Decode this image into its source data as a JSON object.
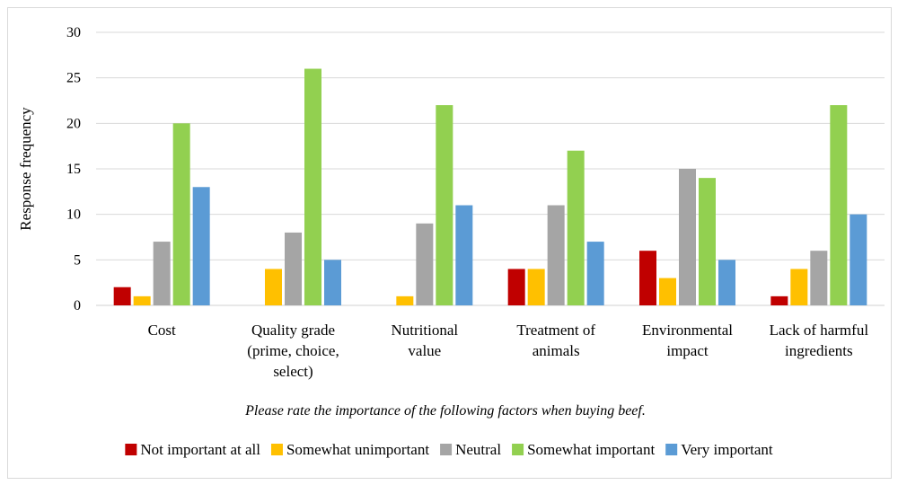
{
  "chart_data": {
    "type": "bar",
    "title": "",
    "ylabel": "Response frequency",
    "xlabel": "Please rate the importance of the following factors when buying beef.",
    "ylim": [
      0,
      30
    ],
    "yticks": [
      0,
      5,
      10,
      15,
      20,
      25,
      30
    ],
    "grid": true,
    "legend_position": "bottom",
    "categories": [
      [
        "Cost"
      ],
      [
        "Quality grade",
        "(prime, choice,",
        "select)"
      ],
      [
        "Nutritional",
        "value"
      ],
      [
        "Treatment of",
        "animals"
      ],
      [
        "Environmental",
        "impact"
      ],
      [
        "Lack of harmful",
        "ingredients"
      ]
    ],
    "series": [
      {
        "name": "Not important at all",
        "color": "#c00000",
        "values": [
          2,
          0,
          0,
          4,
          6,
          1
        ]
      },
      {
        "name": "Somewhat unimportant",
        "color": "#ffc000",
        "values": [
          1,
          4,
          1,
          4,
          3,
          4
        ]
      },
      {
        "name": "Neutral",
        "color": "#a5a5a5",
        "values": [
          7,
          8,
          9,
          11,
          15,
          6
        ]
      },
      {
        "name": "Somewhat important",
        "color": "#92d050",
        "values": [
          20,
          26,
          22,
          17,
          14,
          22
        ]
      },
      {
        "name": "Very important",
        "color": "#5b9bd5",
        "values": [
          13,
          5,
          11,
          7,
          5,
          10
        ]
      }
    ]
  }
}
